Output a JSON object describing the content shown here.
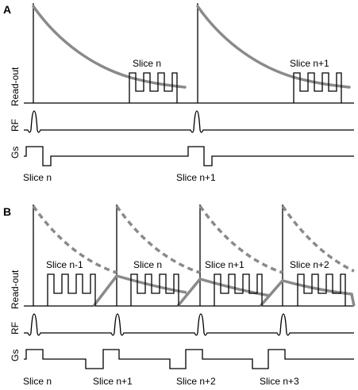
{
  "panel_a": {
    "letter": "A",
    "labels": {
      "readout": "Read-out",
      "rf": "RF",
      "gs": "Gs"
    },
    "readout_slice_labels": [
      "Slice n",
      "Slice n+1"
    ],
    "gs_slice_labels": [
      "Slice n",
      "Slice n+1"
    ]
  },
  "panel_b": {
    "letter": "B",
    "labels": {
      "readout": "Read-out",
      "rf": "RF",
      "gs": "Gs"
    },
    "readout_slice_labels": [
      "Slice n-1",
      "Slice n",
      "Slice n+1",
      "Slice n+2"
    ],
    "gs_slice_labels": [
      "Slice n",
      "Slice n+1",
      "Slice n+2",
      "Slice n+3"
    ]
  },
  "colors": {
    "line": "#000000",
    "signal_decay": "#8a8a8a"
  }
}
